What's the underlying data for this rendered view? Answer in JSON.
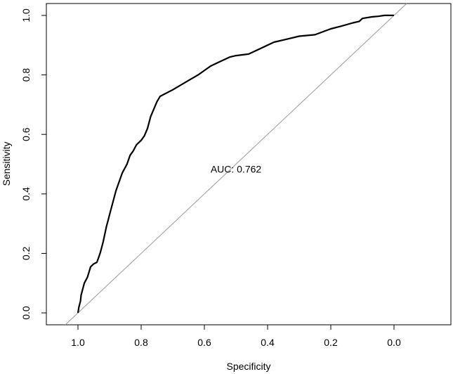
{
  "chart_data": {
    "type": "line",
    "title": "",
    "xlabel": "Specificity",
    "ylabel": "Sensitivity",
    "xlim": [
      1.1,
      -0.18
    ],
    "ylim": [
      -0.04,
      1.04
    ],
    "x_reversed": true,
    "x_ticks": [
      1.0,
      0.8,
      0.6,
      0.4,
      0.2,
      0.0
    ],
    "x_tick_labels": [
      "1.0",
      "0.8",
      "0.6",
      "0.4",
      "0.2",
      "0.0"
    ],
    "y_ticks": [
      0.0,
      0.2,
      0.4,
      0.6,
      0.8,
      1.0
    ],
    "y_tick_labels": [
      "0.0",
      "0.2",
      "0.4",
      "0.6",
      "0.8",
      "1.0"
    ],
    "annotation": {
      "text": "AUC: 0.762",
      "x": 0.5,
      "y": 0.483
    },
    "reference_line": {
      "from": [
        1.0,
        0.0
      ],
      "to": [
        0.0,
        1.0
      ],
      "color": "#9a9a9a"
    },
    "series": [
      {
        "color": "#000000",
        "x": [
          1.0,
          0.997,
          0.992,
          0.99,
          0.985,
          0.98,
          0.97,
          0.96,
          0.95,
          0.94,
          0.93,
          0.925,
          0.92,
          0.91,
          0.905,
          0.9,
          0.89,
          0.88,
          0.87,
          0.86,
          0.845,
          0.835,
          0.825,
          0.815,
          0.8,
          0.79,
          0.78,
          0.77,
          0.76,
          0.75,
          0.74,
          0.7,
          0.66,
          0.62,
          0.58,
          0.55,
          0.52,
          0.5,
          0.46,
          0.42,
          0.38,
          0.34,
          0.3,
          0.25,
          0.2,
          0.17,
          0.13,
          0.11,
          0.1,
          0.07,
          0.05,
          0.03,
          0.0
        ],
        "y": [
          0.0,
          0.02,
          0.04,
          0.06,
          0.08,
          0.1,
          0.12,
          0.155,
          0.165,
          0.17,
          0.2,
          0.22,
          0.24,
          0.29,
          0.31,
          0.33,
          0.37,
          0.41,
          0.44,
          0.47,
          0.5,
          0.53,
          0.545,
          0.565,
          0.58,
          0.595,
          0.62,
          0.66,
          0.685,
          0.71,
          0.728,
          0.75,
          0.775,
          0.8,
          0.83,
          0.845,
          0.86,
          0.865,
          0.87,
          0.89,
          0.91,
          0.92,
          0.93,
          0.935,
          0.955,
          0.963,
          0.975,
          0.98,
          0.99,
          0.995,
          0.997,
          1.0,
          1.0
        ]
      }
    ],
    "grid": false,
    "legend": "none"
  }
}
